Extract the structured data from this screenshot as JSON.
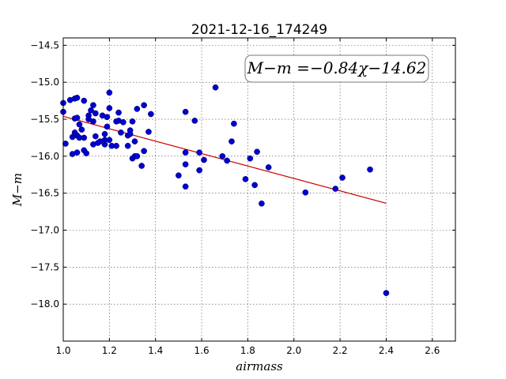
{
  "chart_data": {
    "type": "scatter",
    "title": "2021-12-16_174249",
    "xlabel": "airmass",
    "ylabel": "M−m",
    "xlim": [
      1.0,
      2.7
    ],
    "ylim": [
      -14.4,
      -18.5
    ],
    "xticks": [
      1.0,
      1.2,
      1.4,
      1.6,
      1.8,
      2.0,
      2.2,
      2.4,
      2.6
    ],
    "xtick_labels": [
      "1.0",
      "1.2",
      "1.4",
      "1.6",
      "1.8",
      "2.0",
      "2.2",
      "2.4",
      "2.6"
    ],
    "yticks": [
      -14.5,
      -15.0,
      -15.5,
      -16.0,
      -16.5,
      -17.0,
      -17.5,
      -18.0
    ],
    "ytick_labels": [
      "−14.5",
      "−15.0",
      "−15.5",
      "−16.0",
      "−16.5",
      "−17.0",
      "−17.5",
      "−18.0"
    ],
    "grid": true,
    "annotation": "M−m =−0.84χ−14.62",
    "annotation_position": "top-right",
    "point_color": "#0000cc",
    "fit_color": "#cc0000",
    "fit": {
      "slope": -0.84,
      "intercept": -14.62,
      "x_range": [
        1.0,
        2.4
      ]
    },
    "points": [
      [
        1.0,
        -15.28
      ],
      [
        1.0,
        -15.4
      ],
      [
        1.01,
        -15.83
      ],
      [
        1.03,
        -15.24
      ],
      [
        1.04,
        -15.74
      ],
      [
        1.04,
        -15.97
      ],
      [
        1.05,
        -15.22
      ],
      [
        1.05,
        -15.49
      ],
      [
        1.05,
        -15.68
      ],
      [
        1.06,
        -15.21
      ],
      [
        1.06,
        -15.48
      ],
      [
        1.06,
        -15.72
      ],
      [
        1.06,
        -15.95
      ],
      [
        1.07,
        -15.57
      ],
      [
        1.07,
        -15.75
      ],
      [
        1.08,
        -15.64
      ],
      [
        1.09,
        -15.25
      ],
      [
        1.09,
        -15.75
      ],
      [
        1.09,
        -15.92
      ],
      [
        1.1,
        -15.96
      ],
      [
        1.11,
        -15.45
      ],
      [
        1.11,
        -15.5
      ],
      [
        1.12,
        -15.38
      ],
      [
        1.13,
        -15.53
      ],
      [
        1.13,
        -15.84
      ],
      [
        1.13,
        -15.31
      ],
      [
        1.14,
        -15.42
      ],
      [
        1.14,
        -15.73
      ],
      [
        1.15,
        -15.82
      ],
      [
        1.16,
        -15.8
      ],
      [
        1.17,
        -15.45
      ],
      [
        1.18,
        -15.84
      ],
      [
        1.18,
        -15.7
      ],
      [
        1.18,
        -15.78
      ],
      [
        1.19,
        -15.47
      ],
      [
        1.19,
        -15.6
      ],
      [
        1.2,
        -15.14
      ],
      [
        1.2,
        -15.35
      ],
      [
        1.2,
        -15.78
      ],
      [
        1.21,
        -15.86
      ],
      [
        1.23,
        -15.53
      ],
      [
        1.23,
        -15.86
      ],
      [
        1.24,
        -15.52
      ],
      [
        1.24,
        -15.41
      ],
      [
        1.25,
        -15.68
      ],
      [
        1.26,
        -15.54
      ],
      [
        1.28,
        -15.86
      ],
      [
        1.28,
        -15.72
      ],
      [
        1.29,
        -15.65
      ],
      [
        1.29,
        -15.7
      ],
      [
        1.3,
        -16.03
      ],
      [
        1.3,
        -15.53
      ],
      [
        1.31,
        -16.0
      ],
      [
        1.31,
        -15.8
      ],
      [
        1.32,
        -15.36
      ],
      [
        1.32,
        -16.0
      ],
      [
        1.34,
        -16.13
      ],
      [
        1.35,
        -15.31
      ],
      [
        1.35,
        -15.93
      ],
      [
        1.37,
        -15.67
      ],
      [
        1.38,
        -15.43
      ],
      [
        1.5,
        -16.26
      ],
      [
        1.53,
        -15.4
      ],
      [
        1.53,
        -16.41
      ],
      [
        1.53,
        -15.95
      ],
      [
        1.53,
        -16.11
      ],
      [
        1.57,
        -15.52
      ],
      [
        1.59,
        -15.95
      ],
      [
        1.59,
        -16.19
      ],
      [
        1.61,
        -16.05
      ],
      [
        1.66,
        -15.07
      ],
      [
        1.69,
        -16.0
      ],
      [
        1.71,
        -16.06
      ],
      [
        1.73,
        -15.8
      ],
      [
        1.74,
        -15.56
      ],
      [
        1.79,
        -16.31
      ],
      [
        1.81,
        -16.03
      ],
      [
        1.83,
        -16.39
      ],
      [
        1.84,
        -15.94
      ],
      [
        1.86,
        -16.64
      ],
      [
        1.89,
        -16.15
      ],
      [
        2.05,
        -16.49
      ],
      [
        2.18,
        -16.44
      ],
      [
        2.21,
        -16.29
      ],
      [
        2.33,
        -16.18
      ],
      [
        2.4,
        -17.85
      ]
    ]
  }
}
